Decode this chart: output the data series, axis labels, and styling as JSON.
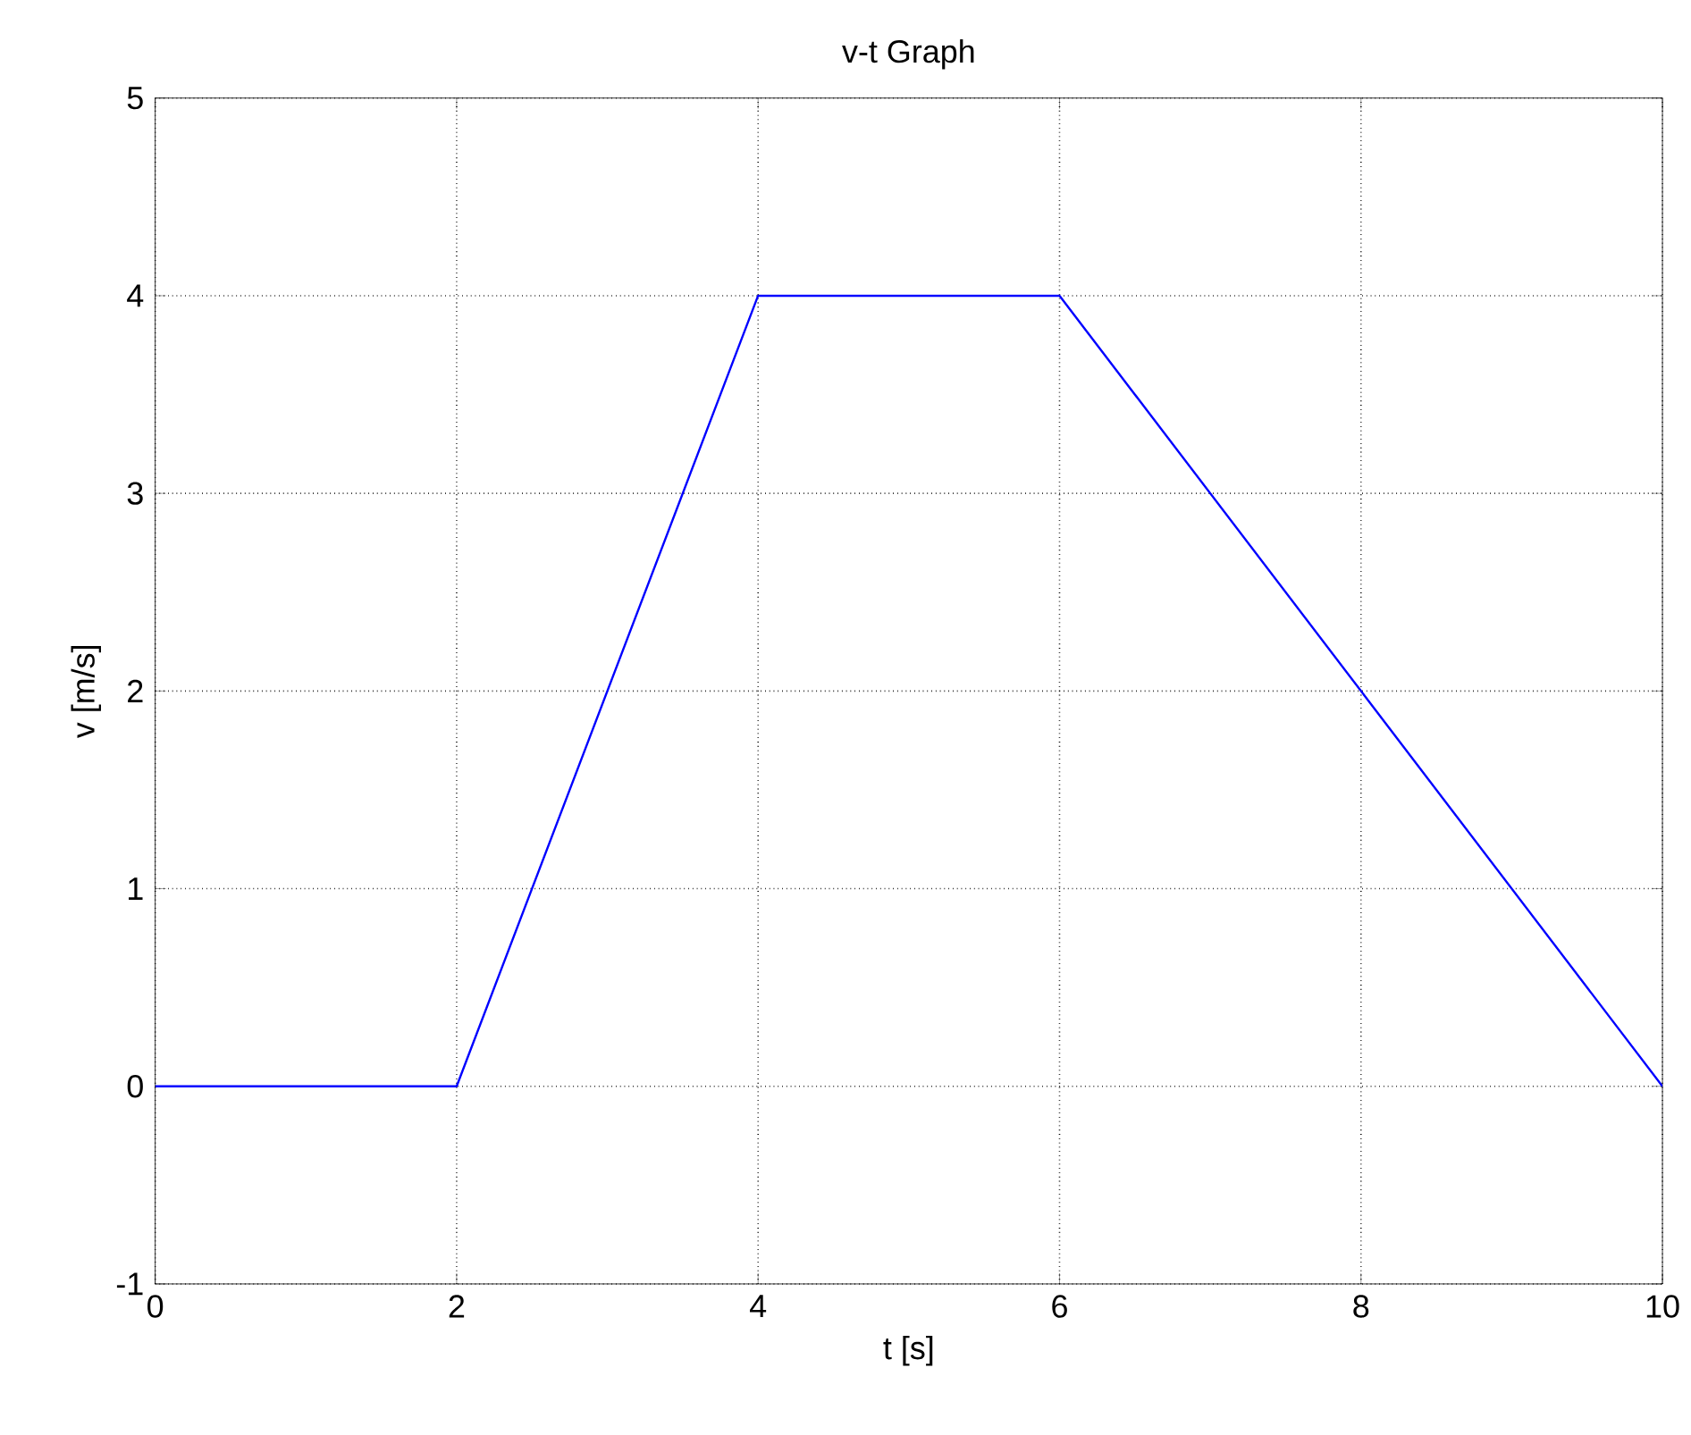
{
  "chart_data": {
    "type": "line",
    "title": "v-t Graph",
    "xlabel": "t [s]",
    "ylabel": "v [m/s]",
    "x": [
      0,
      2,
      4,
      6,
      10
    ],
    "series": [
      {
        "color": "#0000ff",
        "values": [
          0,
          0,
          4,
          4,
          0
        ]
      }
    ],
    "xlim": [
      0,
      10
    ],
    "xticks": [
      0,
      2,
      4,
      6,
      8,
      10
    ],
    "ylim": [
      -1,
      5
    ],
    "yticks": [
      -1,
      0,
      1,
      2,
      3,
      4,
      5
    ],
    "grid": true,
    "line_style": "solid"
  }
}
